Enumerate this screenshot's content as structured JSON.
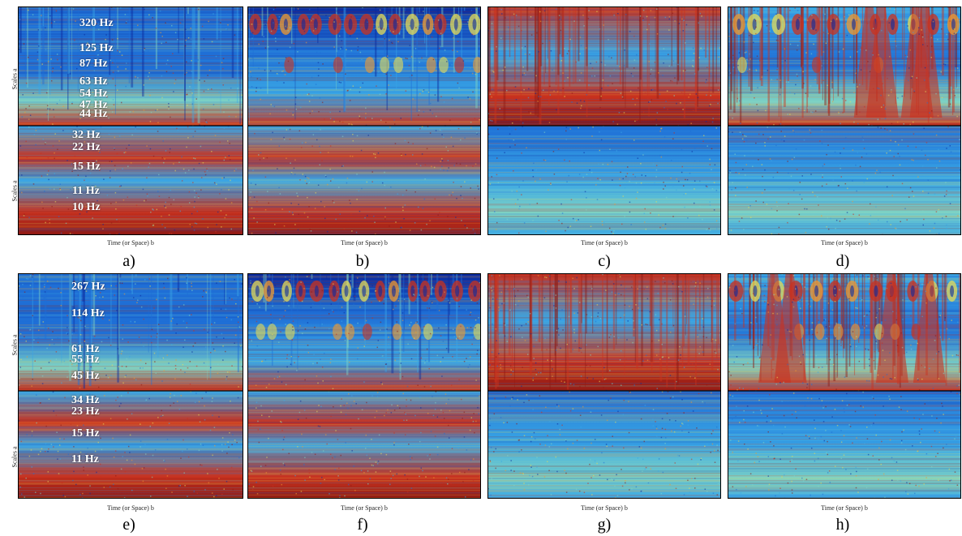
{
  "chart_data": [
    {
      "type": "heatmap",
      "caption": "a)",
      "ylabel": "Scales a",
      "xlabel": "Time (or Space) b",
      "annotations": [
        "320 Hz",
        "125 Hz",
        "87 Hz",
        "63 Hz",
        "54 Hz",
        "47 Hz",
        "44 Hz",
        "32 Hz",
        "22 Hz",
        "15 Hz",
        "11 Hz",
        "10 Hz"
      ],
      "colormap": [
        "#0b2a9e",
        "#1f6fd6",
        "#3aa7e6",
        "#7fd3c4",
        "#e6dc57",
        "#f29a2e",
        "#c9321f",
        "#8f1a14"
      ]
    },
    {
      "type": "heatmap",
      "caption": "b)",
      "xlabel": "Time (or Space) b"
    },
    {
      "type": "heatmap",
      "caption": "c)",
      "xlabel": "Time (or Space) b"
    },
    {
      "type": "heatmap",
      "caption": "d)",
      "xlabel": "Time (or Space) b"
    },
    {
      "type": "heatmap",
      "caption": "e)",
      "ylabel": "Scales a",
      "xlabel": "Time (or Space) b",
      "annotations": [
        "267 Hz",
        "114 Hz",
        "61 Hz",
        "55 Hz",
        "45 Hz",
        "34 Hz",
        "23 Hz",
        "15 Hz",
        "11 Hz"
      ]
    },
    {
      "type": "heatmap",
      "caption": "f)",
      "xlabel": "Time (or Space) b"
    },
    {
      "type": "heatmap",
      "caption": "g)",
      "xlabel": "Time (or Space) b"
    },
    {
      "type": "heatmap",
      "caption": "h)",
      "xlabel": "Time (or Space) b"
    }
  ]
}
